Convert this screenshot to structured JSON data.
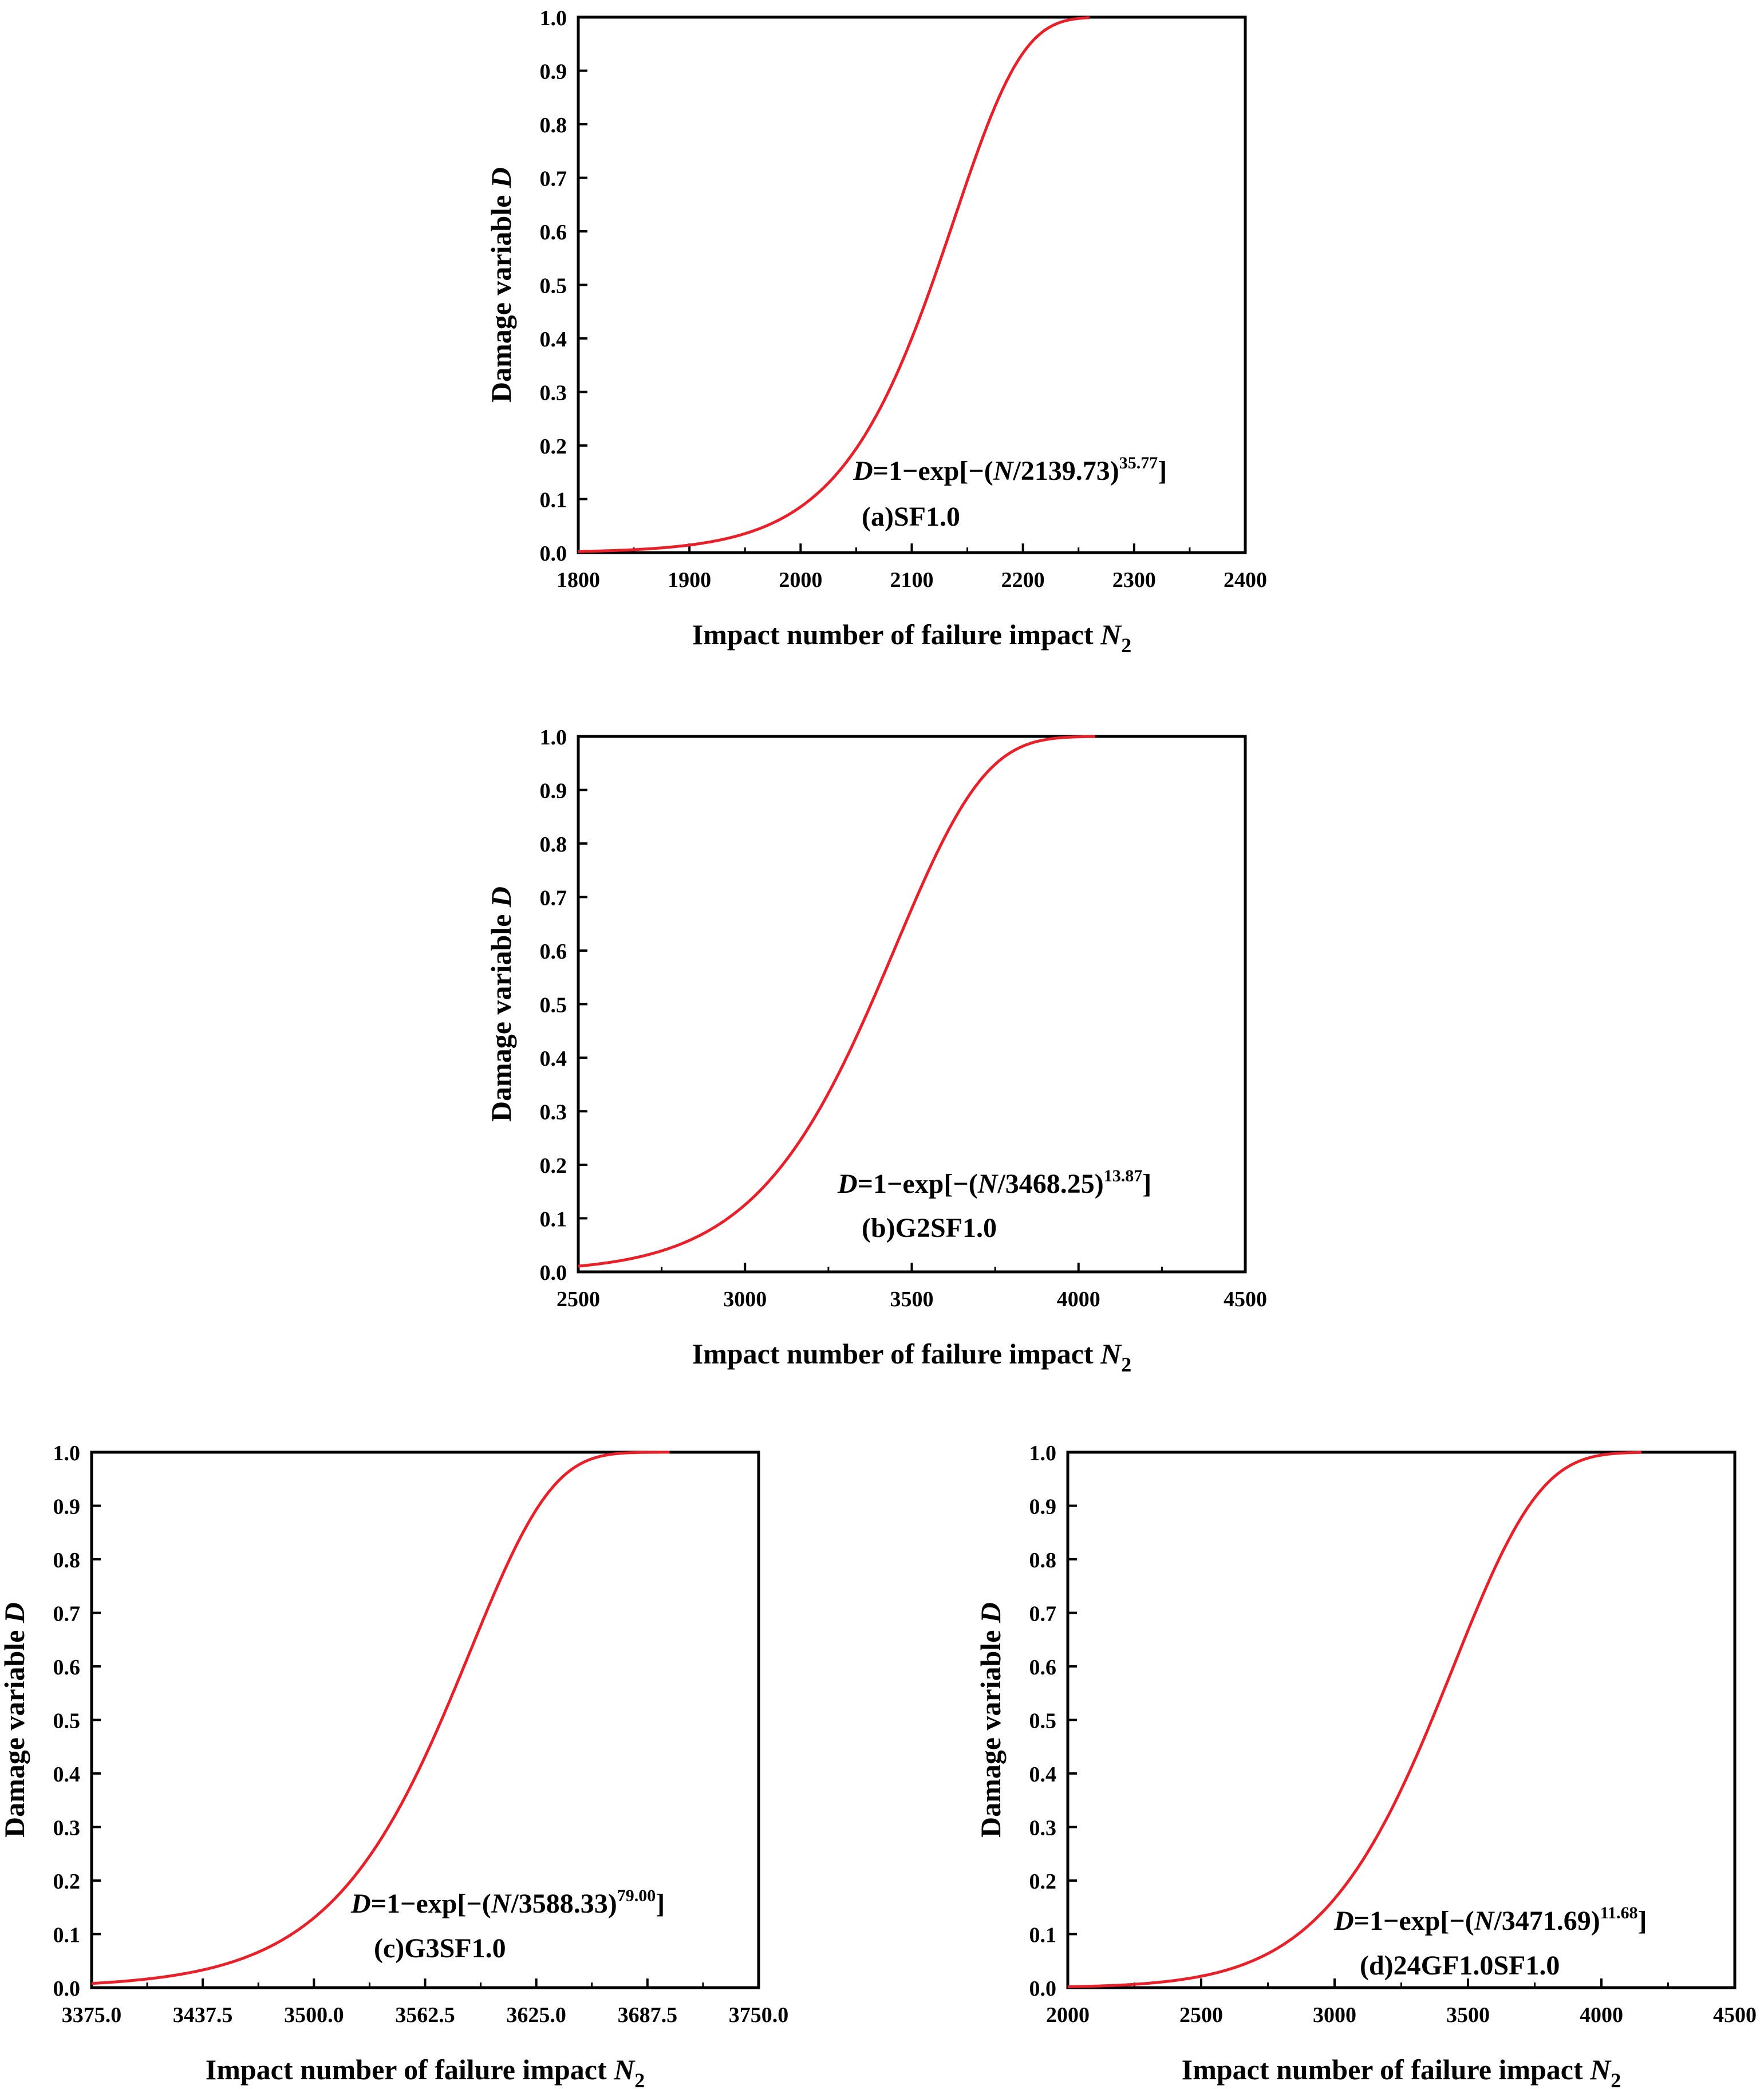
{
  "colors": {
    "curve": "#e8202a",
    "axis": "#000000"
  },
  "chart_data": [
    {
      "type": "line",
      "panel": "(a)SF1.0",
      "xlabel_main": "Impact number of failure impact ",
      "xlabel_var": "N",
      "xlabel_sub": "2",
      "ylabel_main": "Damage variable ",
      "ylabel_var": "D",
      "xlim": [
        1800,
        2400
      ],
      "ylim": [
        0.0,
        1.0
      ],
      "xticks": [
        "1800",
        "1900",
        "2000",
        "2100",
        "2200",
        "2300",
        "2400"
      ],
      "yticks": [
        "0.0",
        "0.1",
        "0.2",
        "0.3",
        "0.4",
        "0.5",
        "0.6",
        "0.7",
        "0.8",
        "0.9",
        "1.0"
      ],
      "fit": {
        "scale": 2139.73,
        "shape": 35.77,
        "x_start": 1800,
        "x_end": 2260
      },
      "equation": {
        "var": "D",
        "pre": "=1−exp[−(",
        "n": "N",
        "mid": "/2139.73)",
        "sup": "35.77",
        "post": "]"
      },
      "grid": false
    },
    {
      "type": "line",
      "panel": "(b)G2SF1.0",
      "xlabel_main": "Impact number of failure impact ",
      "xlabel_var": "N",
      "xlabel_sub": "2",
      "ylabel_main": "Damage variable ",
      "ylabel_var": "D",
      "xlim": [
        2500,
        4500
      ],
      "ylim": [
        0.0,
        1.0
      ],
      "xticks": [
        "2500",
        "3000",
        "3500",
        "4000",
        "4500"
      ],
      "yticks": [
        "0.0",
        "0.1",
        "0.2",
        "0.3",
        "0.4",
        "0.5",
        "0.6",
        "0.7",
        "0.8",
        "0.9",
        "1.0"
      ],
      "fit": {
        "scale": 3468.25,
        "shape": 13.87,
        "x_start": 2500,
        "x_end": 4050
      },
      "equation": {
        "var": "D",
        "pre": "=1−exp[−(",
        "n": "N",
        "mid": "/3468.25)",
        "sup": "13.87",
        "post": "]"
      },
      "grid": false
    },
    {
      "type": "line",
      "panel": "(c)G3SF1.0",
      "xlabel_main": "Impact number of failure impact ",
      "xlabel_var": "N",
      "xlabel_sub": "2",
      "ylabel_main": "Damage variable ",
      "ylabel_var": "D",
      "xlim": [
        3375.0,
        3750.0
      ],
      "ylim": [
        0.0,
        1.0
      ],
      "xticks": [
        "3375.0",
        "3437.5",
        "3500.0",
        "3562.5",
        "3625.0",
        "3687.5",
        "3750.0"
      ],
      "yticks": [
        "0.0",
        "0.1",
        "0.2",
        "0.3",
        "0.4",
        "0.5",
        "0.6",
        "0.7",
        "0.8",
        "0.9",
        "1.0"
      ],
      "fit": {
        "scale": 3588.33,
        "shape": 79.0,
        "x_start": 3375,
        "x_end": 3700
      },
      "equation": {
        "var": "D",
        "pre": "=1−exp[−(",
        "n": "N",
        "mid": "/3588.33)",
        "sup": "79.00",
        "post": "]"
      },
      "grid": false
    },
    {
      "type": "line",
      "panel": "(d)24GF1.0SF1.0",
      "xlabel_main": "Impact number of failure impact ",
      "xlabel_var": "N",
      "xlabel_sub": "2",
      "ylabel_main": "Damage variable ",
      "ylabel_var": "D",
      "xlim": [
        2000,
        4500
      ],
      "ylim": [
        0.0,
        1.0
      ],
      "xticks": [
        "2000",
        "2500",
        "3000",
        "3500",
        "4000",
        "4500"
      ],
      "yticks": [
        "0.0",
        "0.1",
        "0.2",
        "0.3",
        "0.4",
        "0.5",
        "0.6",
        "0.7",
        "0.8",
        "0.9",
        "1.0"
      ],
      "fit": {
        "scale": 3471.69,
        "shape": 11.68,
        "x_start": 2000,
        "x_end": 4150
      },
      "equation": {
        "var": "D",
        "pre": "=1−exp[−(",
        "n": "N",
        "mid": "/3471.69)",
        "sup": "11.68",
        "post": "]"
      },
      "grid": false
    }
  ]
}
